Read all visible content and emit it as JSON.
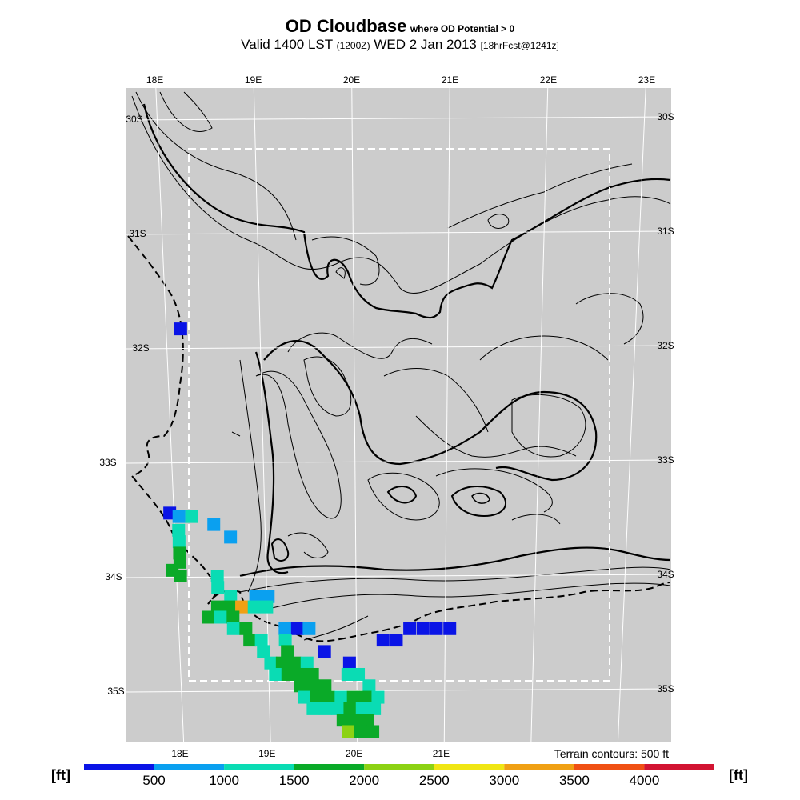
{
  "header": {
    "title": "OD Cloudbase",
    "title_note": "where OD Potential > 0",
    "valid_prefix": "Valid 1400 LST",
    "valid_utc": "(1200Z)",
    "valid_date": "WED 2 Jan 2013",
    "forecast_note": "[18hrFcst@1241z]"
  },
  "map": {
    "lon_labels_top": [
      "18E",
      "19E",
      "20E",
      "21E",
      "22E",
      "23E"
    ],
    "lon_labels_bottom": [
      "18E",
      "19E",
      "20E",
      "21E"
    ],
    "lat_labels_left": [
      "30S",
      "31S",
      "32S",
      "33S",
      "34S",
      "35S"
    ],
    "lat_labels_right": [
      "30S",
      "31S",
      "32S",
      "33S",
      "34S",
      "35S"
    ],
    "background_color": "#cccccc",
    "terrain_note": "Terrain contours: 500 ft"
  },
  "colorbar": {
    "unit_left": "[ft]",
    "unit_right": "[ft]",
    "tick_labels": [
      "500",
      "1000",
      "1500",
      "2000",
      "2500",
      "3000",
      "3500",
      "4000"
    ],
    "colors": [
      "#0a14e6",
      "#0aa0f0",
      "#0adcb4",
      "#0aaa28",
      "#8cd214",
      "#f0e614",
      "#f0a014",
      "#f05014",
      "#d21432"
    ]
  },
  "cells": [
    {
      "c": 0,
      "lon": 18.16,
      "lat": -31.84
    },
    {
      "c": 0,
      "lon": 17.96,
      "lat": -33.45
    },
    {
      "c": 1,
      "lon": 18.06,
      "lat": -33.48
    },
    {
      "c": 2,
      "lon": 18.2,
      "lat": -33.48
    },
    {
      "c": 2,
      "lon": 18.05,
      "lat": -33.6
    },
    {
      "c": 1,
      "lon": 18.44,
      "lat": -33.55
    },
    {
      "c": 1,
      "lon": 18.62,
      "lat": -33.66
    },
    {
      "c": 2,
      "lon": 18.05,
      "lat": -33.7
    },
    {
      "c": 3,
      "lon": 18.05,
      "lat": -33.8
    },
    {
      "c": 3,
      "lon": 18.05,
      "lat": -33.88
    },
    {
      "c": 3,
      "lon": 17.96,
      "lat": -33.95
    },
    {
      "c": 3,
      "lon": 18.05,
      "lat": -34.0
    },
    {
      "c": 2,
      "lon": 18.46,
      "lat": -34.0
    },
    {
      "c": 2,
      "lon": 18.46,
      "lat": -34.1
    },
    {
      "c": 2,
      "lon": 18.6,
      "lat": -34.18
    },
    {
      "c": 1,
      "lon": 18.88,
      "lat": -34.18
    },
    {
      "c": 1,
      "lon": 19.02,
      "lat": -34.18
    },
    {
      "c": 3,
      "lon": 18.45,
      "lat": -34.27
    },
    {
      "c": 3,
      "lon": 18.58,
      "lat": -34.27
    },
    {
      "c": 6,
      "lon": 18.72,
      "lat": -34.27
    },
    {
      "c": 2,
      "lon": 18.86,
      "lat": -34.27
    },
    {
      "c": 2,
      "lon": 19.0,
      "lat": -34.27
    },
    {
      "c": 3,
      "lon": 18.34,
      "lat": -34.36
    },
    {
      "c": 2,
      "lon": 18.48,
      "lat": -34.36
    },
    {
      "c": 3,
      "lon": 18.62,
      "lat": -34.36
    },
    {
      "c": 1,
      "lon": 19.2,
      "lat": -34.46
    },
    {
      "c": 0,
      "lon": 19.34,
      "lat": -34.46
    },
    {
      "c": 1,
      "lon": 19.47,
      "lat": -34.46
    },
    {
      "c": 2,
      "lon": 18.62,
      "lat": -34.46
    },
    {
      "c": 3,
      "lon": 18.76,
      "lat": -34.46
    },
    {
      "c": 3,
      "lon": 18.8,
      "lat": -34.56
    },
    {
      "c": 2,
      "lon": 18.93,
      "lat": -34.56
    },
    {
      "c": 2,
      "lon": 19.2,
      "lat": -34.56
    },
    {
      "c": 0,
      "lon": 20.45,
      "lat": -34.56
    },
    {
      "c": 0,
      "lon": 20.6,
      "lat": -34.46
    },
    {
      "c": 0,
      "lon": 20.75,
      "lat": -34.46
    },
    {
      "c": 0,
      "lon": 20.9,
      "lat": -34.46
    },
    {
      "c": 0,
      "lon": 21.05,
      "lat": -34.46
    },
    {
      "c": 0,
      "lon": 20.3,
      "lat": -34.56
    },
    {
      "c": 2,
      "lon": 18.95,
      "lat": -34.66
    },
    {
      "c": 3,
      "lon": 19.22,
      "lat": -34.66
    },
    {
      "c": 0,
      "lon": 19.64,
      "lat": -34.66
    },
    {
      "c": 2,
      "lon": 19.03,
      "lat": -34.76
    },
    {
      "c": 3,
      "lon": 19.16,
      "lat": -34.76
    },
    {
      "c": 3,
      "lon": 19.3,
      "lat": -34.76
    },
    {
      "c": 2,
      "lon": 19.44,
      "lat": -34.76
    },
    {
      "c": 0,
      "lon": 19.92,
      "lat": -34.76
    },
    {
      "c": 2,
      "lon": 19.08,
      "lat": -34.86
    },
    {
      "c": 3,
      "lon": 19.22,
      "lat": -34.86
    },
    {
      "c": 3,
      "lon": 19.36,
      "lat": -34.86
    },
    {
      "c": 3,
      "lon": 19.5,
      "lat": -34.86
    },
    {
      "c": 2,
      "lon": 19.9,
      "lat": -34.86
    },
    {
      "c": 2,
      "lon": 20.02,
      "lat": -34.86
    },
    {
      "c": 3,
      "lon": 19.36,
      "lat": -34.96
    },
    {
      "c": 3,
      "lon": 19.5,
      "lat": -34.96
    },
    {
      "c": 3,
      "lon": 19.64,
      "lat": -34.96
    },
    {
      "c": 2,
      "lon": 20.14,
      "lat": -34.96
    },
    {
      "c": 2,
      "lon": 19.4,
      "lat": -35.06
    },
    {
      "c": 3,
      "lon": 19.54,
      "lat": -35.06
    },
    {
      "c": 3,
      "lon": 19.68,
      "lat": -35.06
    },
    {
      "c": 2,
      "lon": 19.82,
      "lat": -35.06
    },
    {
      "c": 3,
      "lon": 19.96,
      "lat": -35.06
    },
    {
      "c": 3,
      "lon": 20.1,
      "lat": -35.06
    },
    {
      "c": 2,
      "lon": 20.24,
      "lat": -35.06
    },
    {
      "c": 2,
      "lon": 19.5,
      "lat": -35.16
    },
    {
      "c": 2,
      "lon": 19.64,
      "lat": -35.16
    },
    {
      "c": 2,
      "lon": 19.78,
      "lat": -35.16
    },
    {
      "c": 3,
      "lon": 19.92,
      "lat": -35.16
    },
    {
      "c": 2,
      "lon": 20.06,
      "lat": -35.16
    },
    {
      "c": 2,
      "lon": 20.2,
      "lat": -35.16
    },
    {
      "c": 3,
      "lon": 19.84,
      "lat": -35.26
    },
    {
      "c": 3,
      "lon": 19.98,
      "lat": -35.26
    },
    {
      "c": 3,
      "lon": 20.12,
      "lat": -35.26
    },
    {
      "c": 4,
      "lon": 19.9,
      "lat": -35.36
    },
    {
      "c": 3,
      "lon": 20.04,
      "lat": -35.36
    },
    {
      "c": 3,
      "lon": 20.18,
      "lat": -35.36
    }
  ]
}
